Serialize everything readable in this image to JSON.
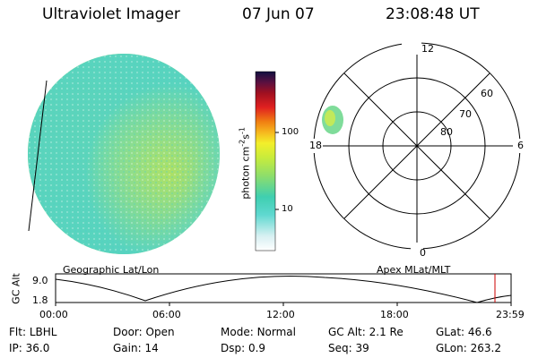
{
  "header": {
    "instrument": "Ultraviolet Imager",
    "date": "07 Jun 07",
    "time": "23:08:48 UT"
  },
  "colorbar": {
    "label": "photon cm",
    "label_exp1": "-2",
    "label_s": "s",
    "label_exp2": "-1",
    "ticks": [
      {
        "value": "100",
        "level": 100
      },
      {
        "value": "10",
        "level": 10
      }
    ]
  },
  "polar_plot": {
    "mlt_labels": {
      "top": "12",
      "right": "6",
      "bottom": "0",
      "left": "18"
    },
    "lat_labels": [
      "60",
      "70",
      "80"
    ],
    "caption": "Apex MLat/MLT"
  },
  "geo_plot": {
    "caption": "Geographic Lat/Lon"
  },
  "altitude_plot": {
    "ylabel": "GC Alt",
    "yticks": [
      "9.0",
      "1.8"
    ],
    "xticks": [
      "00:00",
      "06:00",
      "12:00",
      "18:00",
      "23:59"
    ],
    "marker_time_hours": 23.15
  },
  "info": {
    "row1": [
      {
        "key": "Flt:",
        "val": "LBHL"
      },
      {
        "key": "Door:",
        "val": "Open"
      },
      {
        "key": "Mode:",
        "val": "Normal"
      },
      {
        "key": "GC Alt:",
        "val": "2.1 Re"
      },
      {
        "key": "GLat:",
        "val": "46.6"
      }
    ],
    "row2": [
      {
        "key": "IP:",
        "val": "36.0"
      },
      {
        "key": "Gain:",
        "val": "14"
      },
      {
        "key": "Dsp:",
        "val": "0.9"
      },
      {
        "key": "Seq:",
        "val": "39"
      },
      {
        "key": "GLon:",
        "val": "263.2"
      }
    ]
  },
  "colors": {
    "disk_main": "#b7e35a",
    "disk_bright": "#d8ee3c",
    "disk_edge": "#5ad6c6",
    "marker": "#cc0000"
  }
}
